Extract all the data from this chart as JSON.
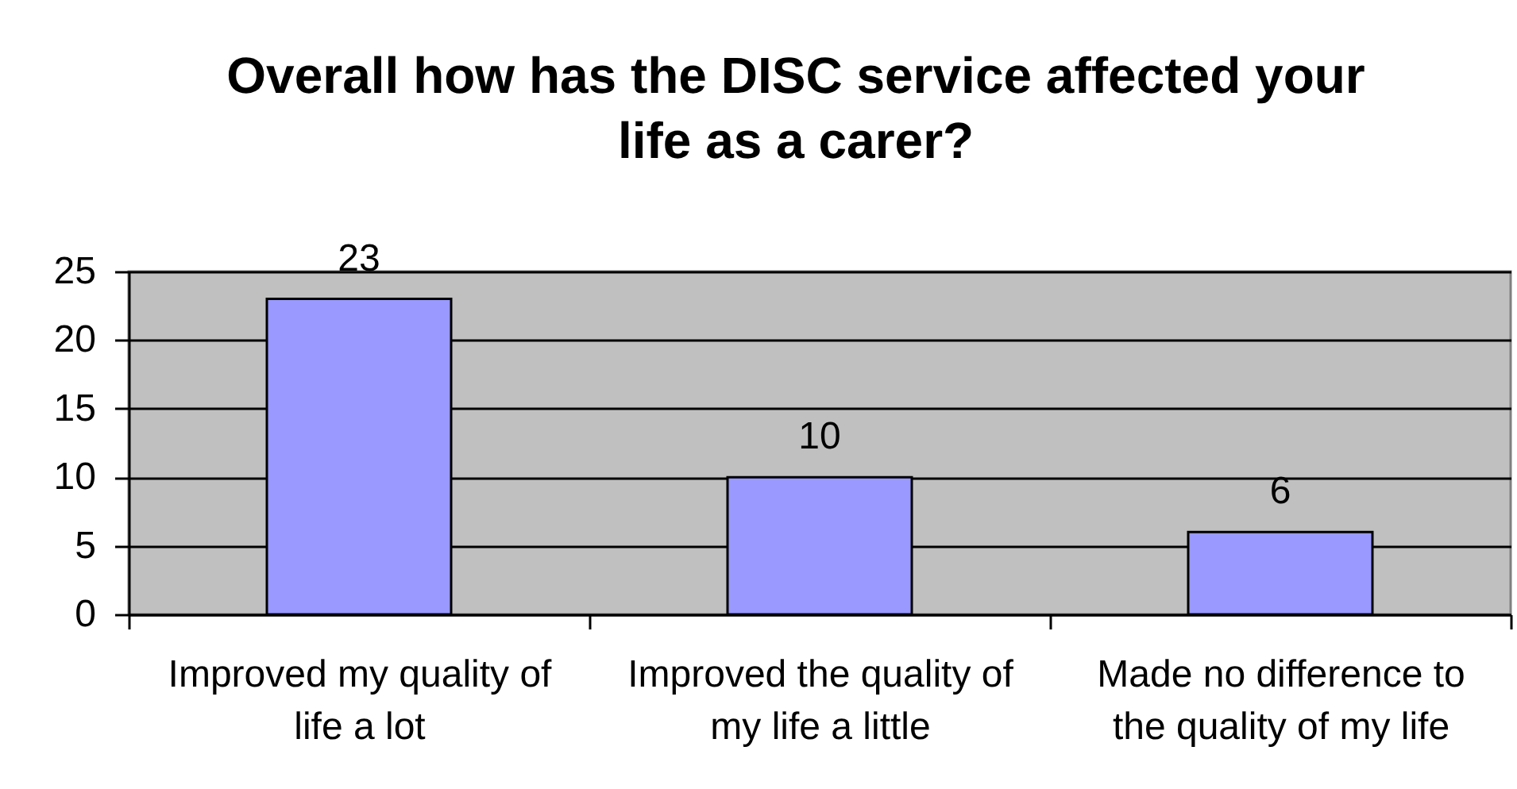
{
  "chart_data": {
    "type": "bar",
    "title": "Overall how has the DISC service affected your life as a carer?",
    "categories": [
      "Improved my quality of life a lot",
      "Improved the quality of my life a little",
      "Made no difference to the quality of my life"
    ],
    "values": [
      23,
      10,
      6
    ],
    "color": "#9999ff",
    "ylim": [
      0,
      25
    ],
    "yticks": [
      0,
      5,
      10,
      15,
      20,
      25
    ],
    "grid": "y",
    "data_labels": true
  }
}
